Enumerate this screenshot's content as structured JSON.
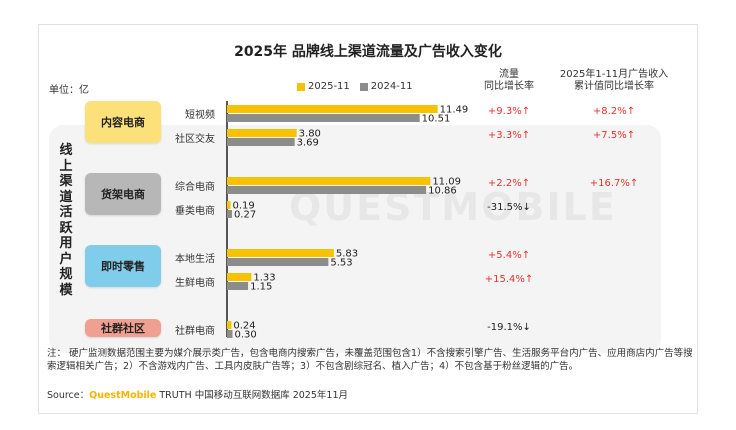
{
  "title": "2025年 品牌线上渠道流量及广告收入变化",
  "unit": "单位：亿",
  "headers": {
    "traffic_line1": "流量",
    "traffic_line2": "同比增长率",
    "ad_line1": "2025年1-11月广告收入",
    "ad_line2": "累计值同比增长率"
  },
  "vertical_label": "线上渠道活跃用户规模",
  "watermark": "QUESTMOBILE",
  "colors": {
    "yellow": "#f7c300",
    "gray": "#8c8c8c",
    "red": "#e8312f"
  },
  "categories": [
    {
      "name": "内容电商",
      "color": "#fce17a",
      "rows": [
        0,
        1
      ]
    },
    {
      "name": "货架电商",
      "color": "#b7b7b7",
      "rows": [
        2,
        3
      ]
    },
    {
      "name": "即时零售",
      "color": "#7fcdea",
      "rows": [
        4,
        5
      ]
    },
    {
      "name": "社群社区",
      "color": "#f0a090",
      "rows": [
        6
      ]
    }
  ],
  "chart_data": {
    "type": "bar",
    "orientation": "horizontal",
    "categories": [
      "短视频",
      "社区交友",
      "综合电商",
      "垂类电商",
      "本地生活",
      "生鲜电商",
      "社群电商"
    ],
    "series": [
      {
        "name": "2025-11",
        "values": [
          11.49,
          3.8,
          11.09,
          0.19,
          5.83,
          1.33,
          0.24
        ]
      },
      {
        "name": "2024-11",
        "values": [
          10.51,
          3.69,
          10.86,
          0.27,
          5.53,
          1.15,
          0.3
        ]
      }
    ],
    "value_labels": [
      [
        "11.49",
        "3.80",
        "11.09",
        "0.19",
        "5.83",
        "1.33",
        "0.24"
      ],
      [
        "10.51",
        "3.69",
        "10.86",
        "0.27",
        "5.53",
        "1.15",
        "0.30"
      ]
    ],
    "traffic_growth": [
      "+9.3%↑",
      "+3.3%↑",
      "+2.2%↑",
      "-31.5%↓",
      "+5.4%↑",
      "+15.4%↑",
      "-19.1%↓"
    ],
    "ad_growth": [
      "+8.2%↑",
      "+7.5%↑",
      "+16.7%↑",
      "",
      "",
      "",
      ""
    ],
    "legend_position": "top"
  },
  "note": "注：  硬广监测数据范围主要为媒介展示类广告，包含电商内搜索广告，未覆盖范围包含1）不含搜索引擎广告、生活服务平台内广告、应用商店内广告等搜索逻辑相关广告；2）不含游戏内广告、工具内皮肤广告等；3）不包含剧综冠名、植入广告；4）不包含基于粉丝逻辑的广告。",
  "source": {
    "prefix": "Source：",
    "brand": "QuestMobile",
    "suffix": " TRUTH 中国移动互联网数据库 2025年11月"
  }
}
